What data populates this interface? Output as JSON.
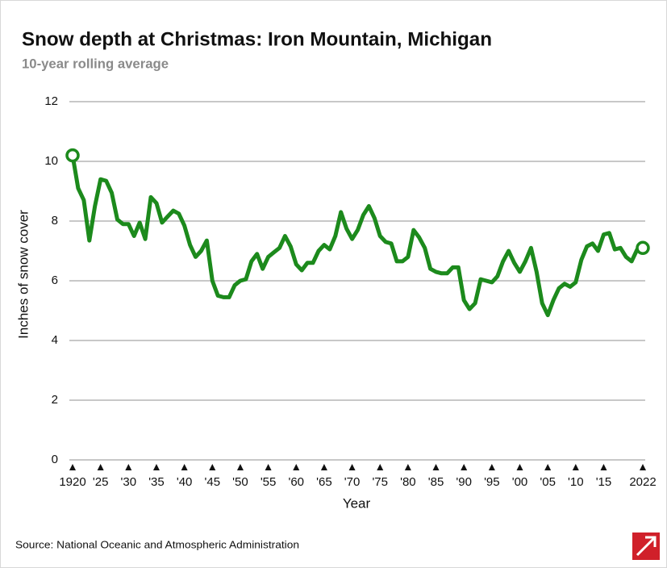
{
  "chart_data": {
    "type": "line",
    "title": "Snow depth at Christmas: Iron Mountain, Michigan",
    "subtitle": "10-year rolling average",
    "ylabel": "Inches of snow cover",
    "xlabel": "Year",
    "source": "Source: National Oceanic and Atmospheric Administration",
    "x": [
      1920,
      1921,
      1922,
      1923,
      1924,
      1925,
      1926,
      1927,
      1928,
      1929,
      1930,
      1931,
      1932,
      1933,
      1934,
      1935,
      1936,
      1937,
      1938,
      1939,
      1940,
      1941,
      1942,
      1943,
      1944,
      1945,
      1946,
      1947,
      1948,
      1949,
      1950,
      1951,
      1952,
      1953,
      1954,
      1955,
      1956,
      1957,
      1958,
      1959,
      1960,
      1961,
      1962,
      1963,
      1964,
      1965,
      1966,
      1967,
      1968,
      1969,
      1970,
      1971,
      1972,
      1973,
      1974,
      1975,
      1976,
      1977,
      1978,
      1979,
      1980,
      1981,
      1982,
      1983,
      1984,
      1985,
      1986,
      1987,
      1988,
      1989,
      1990,
      1991,
      1992,
      1993,
      1994,
      1995,
      1996,
      1997,
      1998,
      1999,
      2000,
      2001,
      2002,
      2003,
      2004,
      2005,
      2006,
      2007,
      2008,
      2009,
      2010,
      2011,
      2012,
      2013,
      2014,
      2015,
      2016,
      2017,
      2018,
      2019,
      2020,
      2021,
      2022
    ],
    "series": [
      {
        "name": "Snow depth",
        "color": "#1c8a1c",
        "values": [
          10.2,
          9.1,
          8.7,
          7.35,
          8.5,
          9.4,
          9.35,
          8.95,
          8.05,
          7.9,
          7.9,
          7.5,
          7.95,
          7.4,
          8.8,
          8.6,
          7.95,
          8.15,
          8.35,
          8.25,
          7.85,
          7.2,
          6.8,
          7.0,
          7.35,
          6.0,
          5.5,
          5.45,
          5.45,
          5.85,
          6.0,
          6.05,
          6.65,
          6.9,
          6.4,
          6.8,
          6.95,
          7.1,
          7.5,
          7.15,
          6.55,
          6.35,
          6.6,
          6.6,
          7.0,
          7.2,
          7.05,
          7.5,
          8.3,
          7.75,
          7.4,
          7.7,
          8.2,
          8.5,
          8.1,
          7.5,
          7.3,
          7.25,
          6.65,
          6.65,
          6.8,
          7.7,
          7.45,
          7.1,
          6.4,
          6.3,
          6.25,
          6.25,
          6.45,
          6.45,
          5.35,
          5.05,
          5.25,
          6.05,
          6.0,
          5.95,
          6.15,
          6.65,
          7.0,
          6.6,
          6.3,
          6.65,
          7.1,
          6.3,
          5.25,
          4.85,
          5.35,
          5.75,
          5.9,
          5.8,
          5.95,
          6.7,
          7.15,
          7.25,
          7.0,
          7.55,
          7.6,
          7.05,
          7.1,
          6.8,
          6.65,
          7.05,
          7.1
        ]
      }
    ],
    "xlim": [
      1920,
      2022
    ],
    "xticks": [
      1920,
      {
        "value": 1925,
        "label": "'25"
      },
      {
        "value": 1930,
        "label": "'30"
      },
      {
        "value": 1935,
        "label": "'35"
      },
      {
        "value": 1940,
        "label": "'40"
      },
      {
        "value": 1945,
        "label": "'45"
      },
      {
        "value": 1950,
        "label": "'50"
      },
      {
        "value": 1955,
        "label": "'55"
      },
      {
        "value": 1960,
        "label": "'60"
      },
      {
        "value": 1965,
        "label": "'65"
      },
      {
        "value": 1970,
        "label": "'70"
      },
      {
        "value": 1975,
        "label": "'75"
      },
      {
        "value": 1980,
        "label": "'80"
      },
      {
        "value": 1985,
        "label": "'85"
      },
      {
        "value": 1990,
        "label": "'90"
      },
      {
        "value": 1995,
        "label": "'95"
      },
      {
        "value": 2000,
        "label": "'00"
      },
      {
        "value": 2005,
        "label": "'05"
      },
      {
        "value": 2010,
        "label": "'10"
      },
      {
        "value": 2015,
        "label": "'15"
      },
      2022
    ],
    "ylim": [
      0,
      12
    ],
    "yticks": [
      0,
      2,
      4,
      6,
      8,
      10,
      12
    ],
    "grid": true
  }
}
